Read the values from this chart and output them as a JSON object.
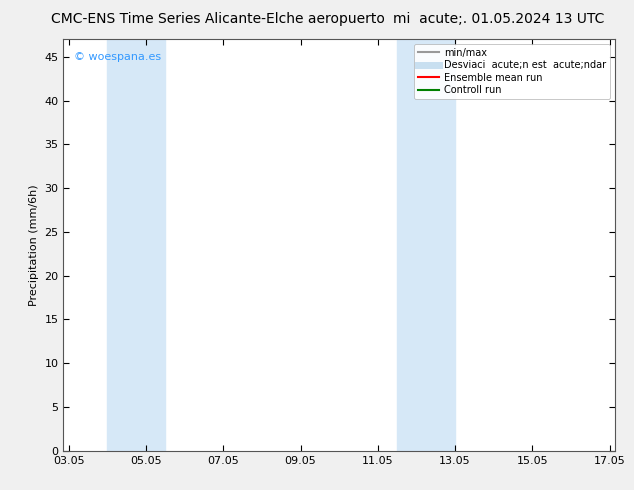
{
  "title": "CMC-ENS Time Series Alicante-Elche aeropuerto",
  "title_right": "mi  acute;. 01.05.2024 13 UTC",
  "ylabel": "Precipitation (mm/6h)",
  "watermark": "© woespana.es",
  "x_ticks": [
    "03.05",
    "05.05",
    "07.05",
    "09.05",
    "11.05",
    "13.05",
    "15.05",
    "17.05"
  ],
  "x_vals": [
    3,
    5,
    7,
    9,
    11,
    13,
    15,
    17
  ],
  "xlim": [
    2.86,
    17.14
  ],
  "ylim": [
    0,
    47
  ],
  "y_ticks": [
    0,
    5,
    10,
    15,
    20,
    25,
    30,
    35,
    40,
    45
  ],
  "bg_color": "#f0f0f0",
  "plot_bg_color": "#ffffff",
  "shaded_bands": [
    {
      "x_start": 4.0,
      "x_end": 5.5,
      "color": "#d6e8f7"
    },
    {
      "x_start": 11.5,
      "x_end": 13.0,
      "color": "#d6e8f7"
    }
  ],
  "legend_items": [
    {
      "label": "min/max",
      "color": "#999999",
      "lw": 1.5
    },
    {
      "label": "Desviaci  acute;n est  acute;ndar",
      "color": "#c8dff0",
      "lw": 5
    },
    {
      "label": "Ensemble mean run",
      "color": "#ff0000",
      "lw": 1.5
    },
    {
      "label": "Controll run",
      "color": "#008000",
      "lw": 1.5
    }
  ],
  "title_fontsize": 10,
  "axis_fontsize": 8,
  "tick_fontsize": 8,
  "watermark_color": "#3399ff",
  "border_color": "#555555"
}
